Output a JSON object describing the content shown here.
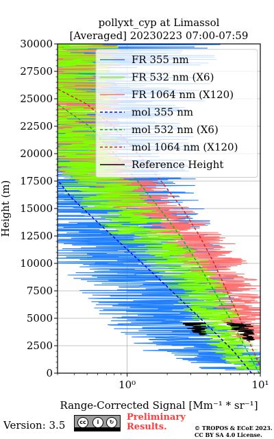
{
  "chart_data": {
    "type": "line",
    "title_line1": "pollyxt_cyp at Limassol",
    "title_line2": "[Averaged] 20230223 07:00-07:59",
    "xlabel": "Range-Corrected Signal [Mm⁻¹ * sr⁻¹]",
    "ylabel": "Height (m)",
    "xscale": "log",
    "xlim": [
      0.3,
      10
    ],
    "ylim": [
      0,
      30000
    ],
    "grid": true,
    "legend_position": "top-right",
    "x_tick_labels": [
      {
        "value": 1,
        "label": "10⁰"
      },
      {
        "value": 10,
        "label": "10¹"
      }
    ],
    "y_ticks": [
      0,
      2500,
      5000,
      7500,
      10000,
      12500,
      15000,
      17500,
      20000,
      22500,
      25000,
      27500,
      30000
    ],
    "series": [
      {
        "name": "FR 355 nm",
        "color": "#1f7fff",
        "style": "solid",
        "noisy": true,
        "noise": 1.2,
        "seed": 7,
        "points": [
          [
            9.0,
            300
          ],
          [
            7.5,
            800
          ],
          [
            4.5,
            1700
          ],
          [
            3.2,
            2500
          ],
          [
            2.6,
            3500
          ],
          [
            2.2,
            5000
          ],
          [
            1.9,
            7000
          ],
          [
            1.5,
            9000
          ],
          [
            1.05,
            11000
          ],
          [
            0.8,
            13000
          ],
          [
            0.6,
            15000
          ],
          [
            0.48,
            17000
          ],
          [
            0.4,
            19000
          ],
          [
            0.36,
            21000
          ],
          [
            0.34,
            24000
          ],
          [
            0.33,
            30000
          ]
        ]
      },
      {
        "name": "FR 532 nm (X6)",
        "color": "#7fff00",
        "style": "solid",
        "noisy": true,
        "noise": 0.45,
        "seed": 11,
        "points": [
          [
            9.2,
            300
          ],
          [
            7.0,
            1500
          ],
          [
            5.2,
            3500
          ],
          [
            4.2,
            6000
          ],
          [
            3.2,
            8000
          ],
          [
            2.4,
            10000
          ],
          [
            1.6,
            12000
          ],
          [
            1.05,
            14000
          ],
          [
            0.72,
            16000
          ],
          [
            0.52,
            18000
          ],
          [
            0.42,
            20000
          ],
          [
            0.36,
            22000
          ],
          [
            0.33,
            25000
          ],
          [
            0.32,
            30000
          ]
        ]
      },
      {
        "name": "FR 1064 nm (X120)",
        "color": "#ff7070",
        "style": "solid",
        "noisy": true,
        "noise": 0.5,
        "seed": 23,
        "points": [
          [
            8.5,
            3000
          ],
          [
            7.6,
            5000
          ],
          [
            6.5,
            7000
          ],
          [
            5.2,
            9000
          ],
          [
            4.2,
            10500
          ],
          [
            3.3,
            12000
          ],
          [
            2.4,
            13500
          ],
          [
            1.6,
            15000
          ],
          [
            1.05,
            16500
          ],
          [
            0.7,
            18000
          ],
          [
            0.5,
            19500
          ],
          [
            0.4,
            21000
          ],
          [
            0.34,
            23000
          ],
          [
            0.32,
            30000
          ]
        ]
      },
      {
        "name": "mol 355 nm",
        "color": "#0000dd",
        "style": "dashed",
        "points": [
          [
            8.6,
            0
          ],
          [
            6.3,
            2000
          ],
          [
            4.3,
            4000
          ],
          [
            2.9,
            6000
          ],
          [
            1.95,
            8000
          ],
          [
            1.3,
            10000
          ],
          [
            0.86,
            12000
          ],
          [
            0.57,
            14000
          ],
          [
            0.38,
            16000
          ],
          [
            0.3,
            17600
          ]
        ]
      },
      {
        "name": "mol 532 nm (X6)",
        "color": "#00bb00",
        "style": "dashed",
        "points": [
          [
            9.8,
            0
          ],
          [
            7.6,
            2500
          ],
          [
            5.9,
            5000
          ],
          [
            4.5,
            7500
          ],
          [
            3.4,
            10000
          ],
          [
            2.5,
            12500
          ],
          [
            1.75,
            15000
          ],
          [
            1.2,
            17500
          ],
          [
            0.8,
            20000
          ],
          [
            0.52,
            22500
          ],
          [
            0.3,
            24500
          ]
        ]
      },
      {
        "name": "mol 1064 nm (X120)",
        "color": "#d42020",
        "style": "dashed",
        "points": [
          [
            10.5,
            0
          ],
          [
            8.5,
            2500
          ],
          [
            7.0,
            5000
          ],
          [
            5.6,
            7500
          ],
          [
            4.5,
            10000
          ],
          [
            3.5,
            12500
          ],
          [
            2.6,
            15000
          ],
          [
            1.8,
            17500
          ],
          [
            1.2,
            20000
          ],
          [
            0.78,
            22500
          ],
          [
            0.5,
            24500
          ],
          [
            0.3,
            25900
          ]
        ]
      },
      {
        "name": "Reference Height",
        "color": "#000000",
        "style": "solid",
        "noisy": true,
        "noise": 0.12,
        "seed": 5,
        "segmented": true,
        "segments": [
          [
            [
              3.0,
              4600
            ],
            [
              3.15,
              4300
            ],
            [
              3.3,
              4100
            ],
            [
              3.5,
              3800
            ],
            [
              3.7,
              3500
            ]
          ],
          [
            [
              6.8,
              4600
            ],
            [
              7.1,
              4300
            ],
            [
              7.4,
              4000
            ],
            [
              7.7,
              3700
            ],
            [
              8.0,
              3200
            ],
            [
              8.3,
              3000
            ]
          ]
        ]
      }
    ]
  },
  "footer": {
    "version_label": "Version: 3.5",
    "cc_label": "BY SA",
    "preliminary_line1": "Preliminary",
    "preliminary_line2": "Results.",
    "copyright_line1": "© TROPOS & ECoE 2023.",
    "copyright_line2": "CC BY SA 4.0 License."
  },
  "colors": {
    "axis": "#000000",
    "grid": "#b0b0b0",
    "legend_bg": "#ffffff",
    "prelim": "#ff3b3b"
  }
}
